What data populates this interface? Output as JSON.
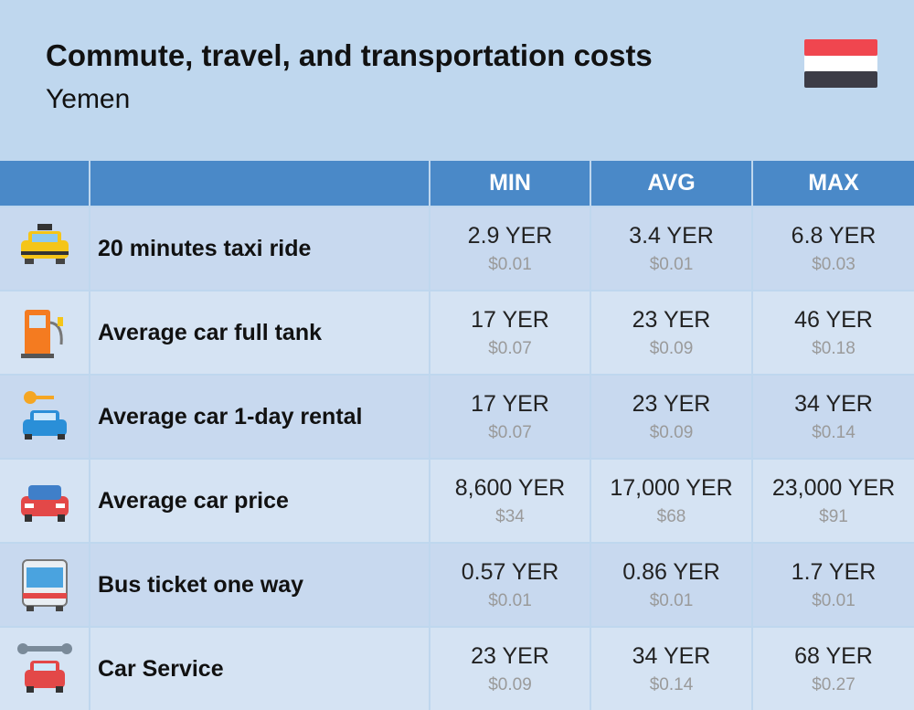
{
  "header": {
    "title": "Commute, travel, and transportation costs",
    "subtitle": "Yemen"
  },
  "table": {
    "columns": [
      "MIN",
      "AVG",
      "MAX"
    ],
    "rows": [
      {
        "label": "20 minutes taxi ride",
        "cells": [
          {
            "local": "2.9 YER",
            "usd": "$0.01"
          },
          {
            "local": "3.4 YER",
            "usd": "$0.01"
          },
          {
            "local": "6.8 YER",
            "usd": "$0.03"
          }
        ]
      },
      {
        "label": "Average car full tank",
        "cells": [
          {
            "local": "17 YER",
            "usd": "$0.07"
          },
          {
            "local": "23 YER",
            "usd": "$0.09"
          },
          {
            "local": "46 YER",
            "usd": "$0.18"
          }
        ]
      },
      {
        "label": "Average car 1-day rental",
        "cells": [
          {
            "local": "17 YER",
            "usd": "$0.07"
          },
          {
            "local": "23 YER",
            "usd": "$0.09"
          },
          {
            "local": "34 YER",
            "usd": "$0.14"
          }
        ]
      },
      {
        "label": "Average car price",
        "cells": [
          {
            "local": "8,600 YER",
            "usd": "$34"
          },
          {
            "local": "17,000 YER",
            "usd": "$68"
          },
          {
            "local": "23,000 YER",
            "usd": "$91"
          }
        ]
      },
      {
        "label": "Bus ticket one way",
        "cells": [
          {
            "local": "0.57 YER",
            "usd": "$0.01"
          },
          {
            "local": "0.86 YER",
            "usd": "$0.01"
          },
          {
            "local": "1.7 YER",
            "usd": "$0.01"
          }
        ]
      },
      {
        "label": "Car Service",
        "cells": [
          {
            "local": "23 YER",
            "usd": "$0.09"
          },
          {
            "local": "34 YER",
            "usd": "$0.14"
          },
          {
            "local": "68 YER",
            "usd": "$0.27"
          }
        ]
      }
    ]
  }
}
